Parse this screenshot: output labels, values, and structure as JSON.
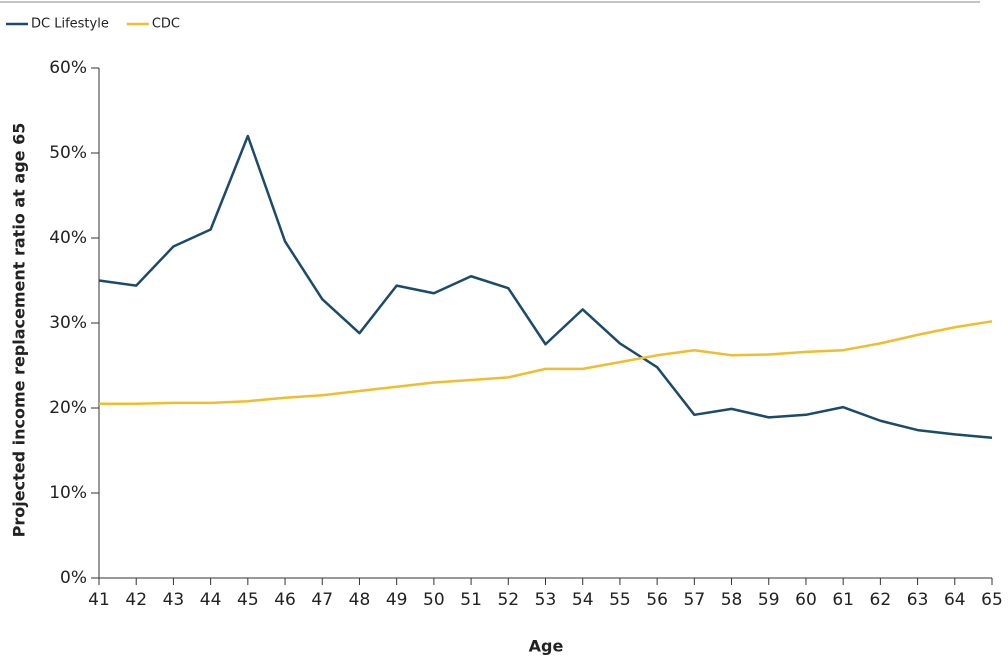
{
  "chart_data": {
    "type": "line",
    "x": [
      41,
      42,
      43,
      44,
      45,
      46,
      47,
      48,
      49,
      50,
      51,
      52,
      53,
      54,
      55,
      56,
      57,
      58,
      59,
      60,
      61,
      62,
      63,
      64,
      65
    ],
    "series": [
      {
        "name": "DC Lifestyle",
        "color": "#1b4a6b",
        "values": [
          35,
          34.4,
          39,
          41,
          52,
          39.6,
          32.8,
          28.8,
          34.4,
          33.5,
          35.5,
          34.1,
          27.5,
          31.6,
          27.6,
          24.8,
          19.2,
          19.9,
          18.9,
          19.2,
          20.1,
          18.5,
          17.4,
          16.9,
          16.5
        ]
      },
      {
        "name": "CDC",
        "color": "#f2bd2c",
        "values": [
          20.5,
          20.5,
          20.6,
          20.6,
          20.8,
          21.2,
          21.5,
          22,
          22.5,
          23,
          23.3,
          23.6,
          24.6,
          24.6,
          25.4,
          26.2,
          26.8,
          26.2,
          26.3,
          26.6,
          26.8,
          27.6,
          28.6,
          29.5,
          30.2
        ]
      }
    ],
    "xlabel": "Age",
    "ylabel": "Projected income replacement ratio at age 65",
    "xlim": [
      41,
      65
    ],
    "xticks": [
      41,
      42,
      43,
      44,
      45,
      46,
      47,
      48,
      49,
      50,
      51,
      52,
      53,
      54,
      55,
      56,
      57,
      58,
      59,
      60,
      61,
      62,
      63,
      64,
      65
    ],
    "ylim": [
      0,
      60
    ],
    "yticks": [
      {
        "value": 0,
        "label": "0%"
      },
      {
        "value": 10,
        "label": "10%"
      },
      {
        "value": 20,
        "label": "20%"
      },
      {
        "value": 30,
        "label": "30%"
      },
      {
        "value": 40,
        "label": "40%"
      },
      {
        "value": 50,
        "label": "50%"
      },
      {
        "value": 60,
        "label": "60%"
      }
    ],
    "legend": "top-left"
  }
}
